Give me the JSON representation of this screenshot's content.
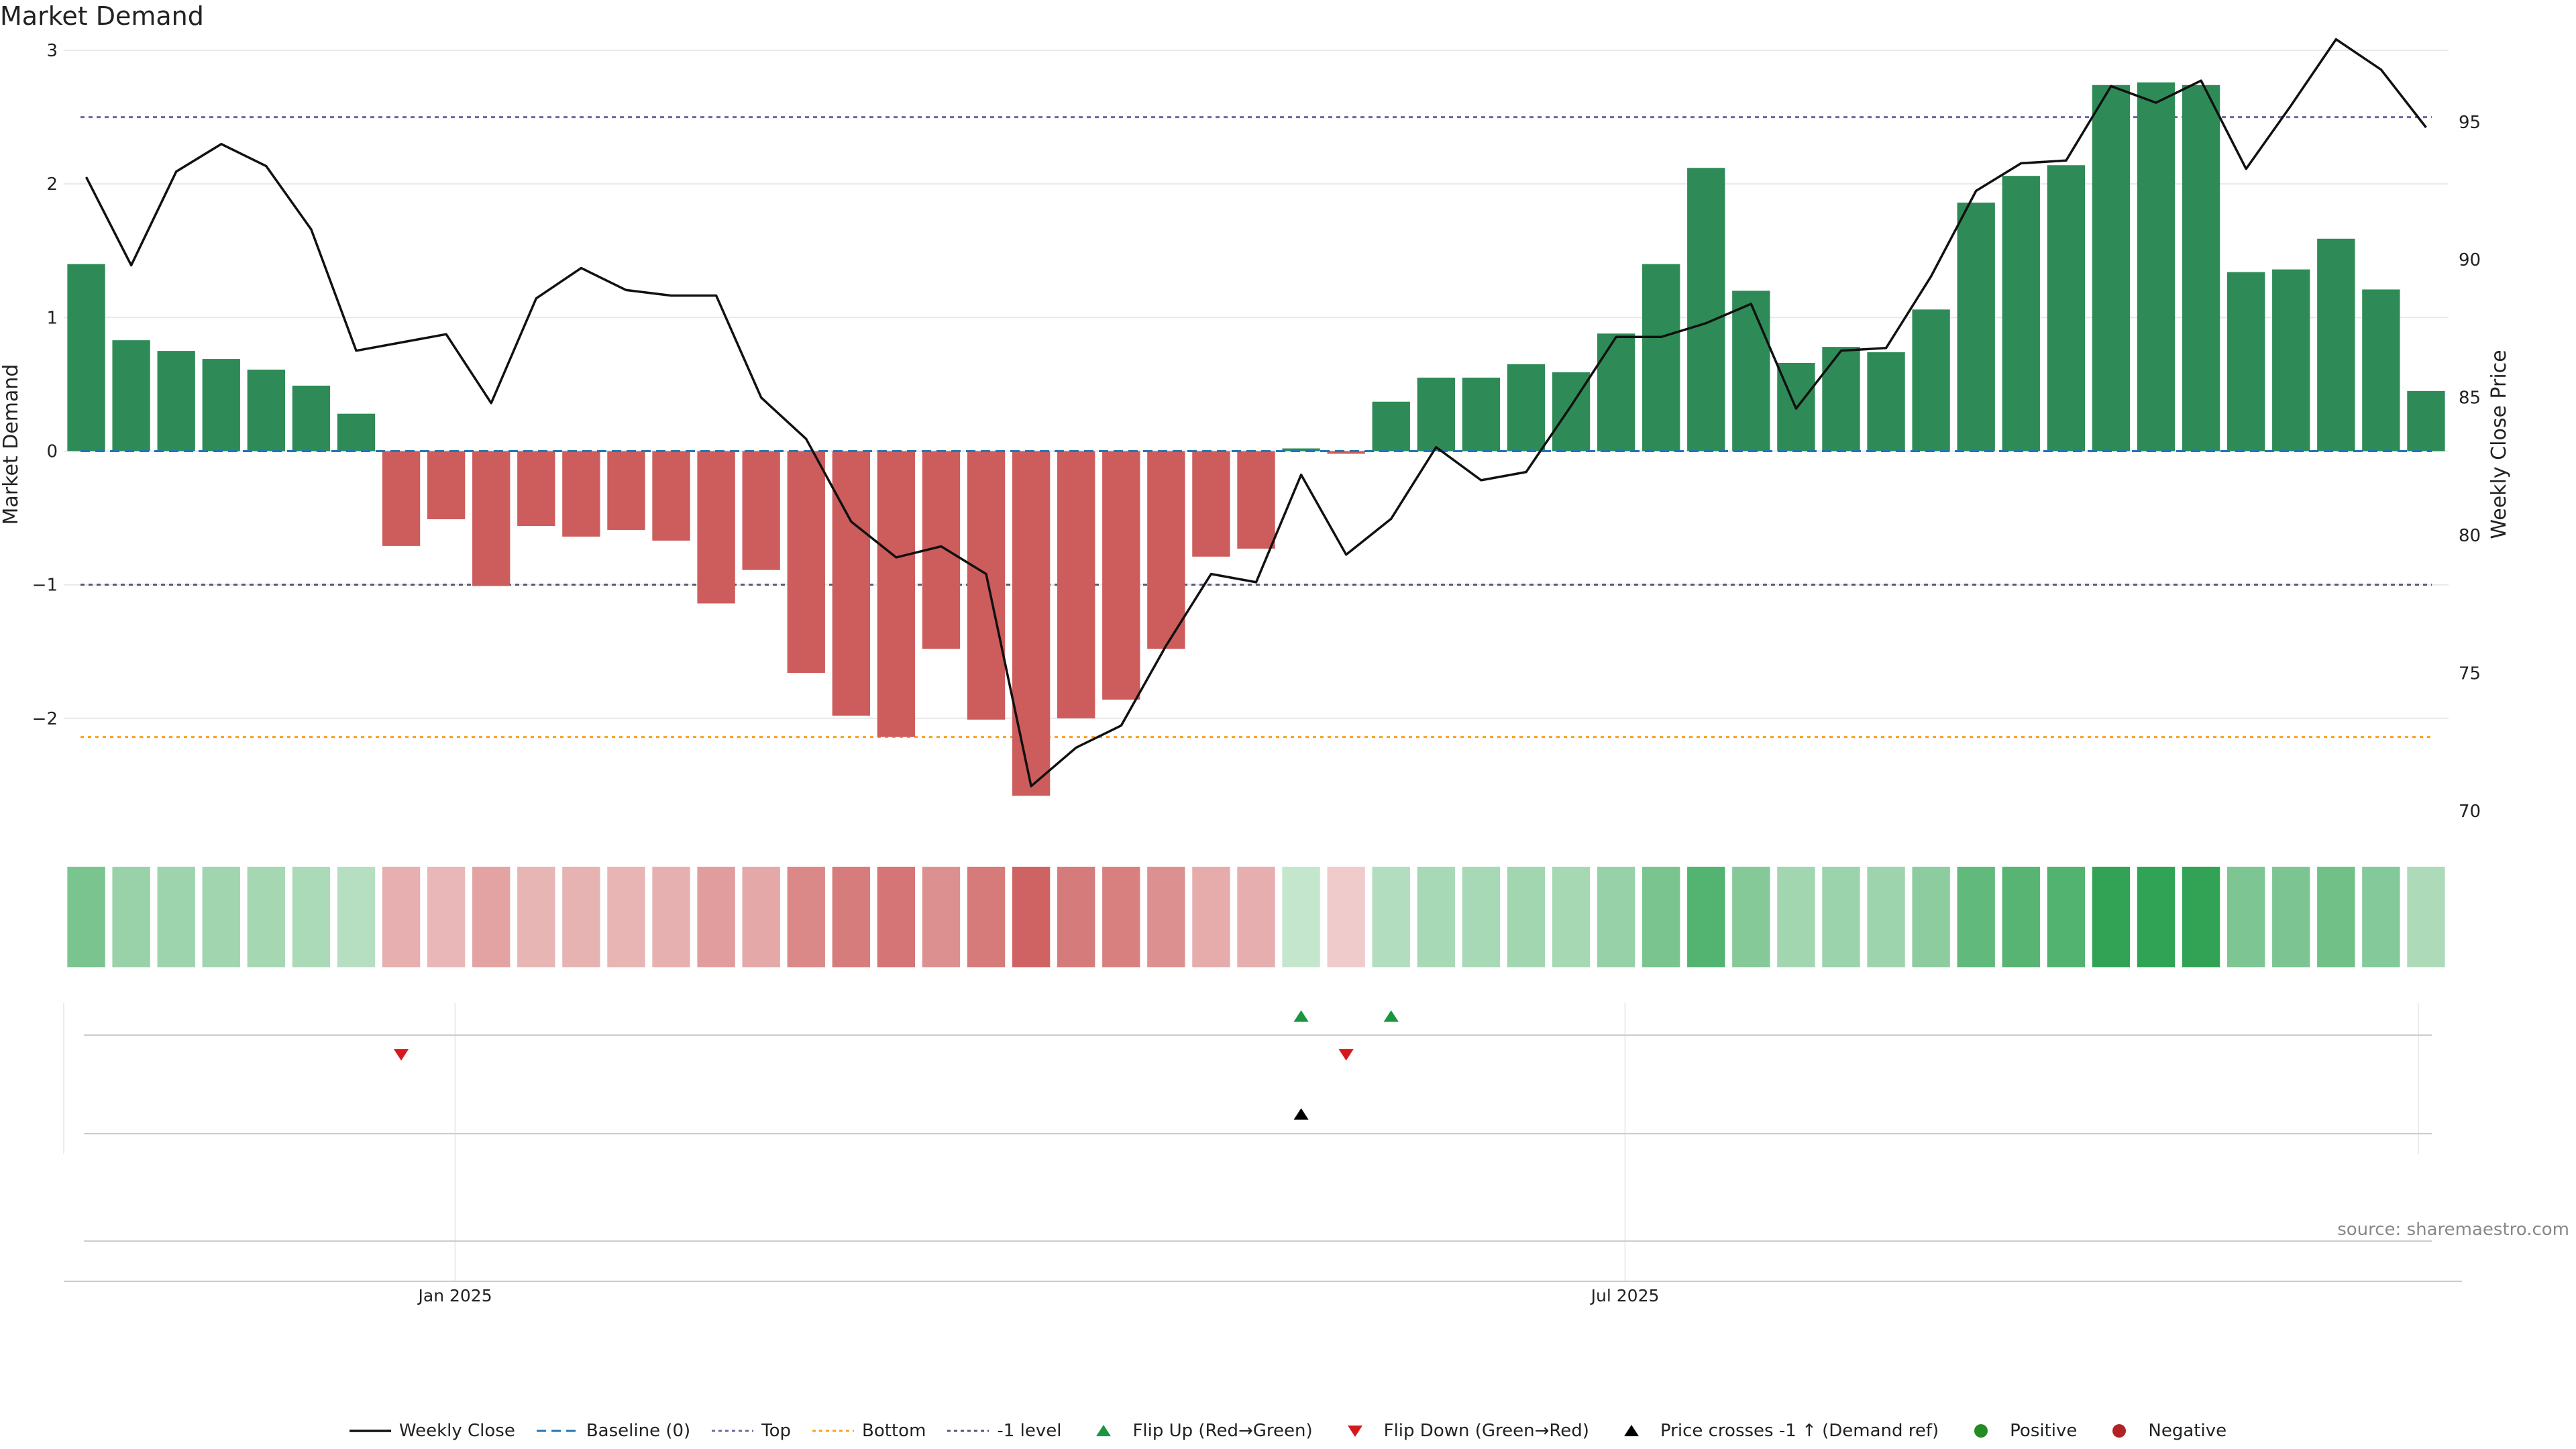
{
  "title": "Market Demand",
  "source": "source: sharemaestro.com",
  "colors": {
    "positive": "#2e8b57",
    "negative": "#cd5c5c",
    "price": "#111111",
    "baseline": "#1f77b4",
    "top": "#6a6aa8",
    "bottom": "#ff9f1c",
    "neg_level": "#555577",
    "flip_up": "#1a9641",
    "flip_down": "#d7191c"
  },
  "chart_data": {
    "type": "bar",
    "ylabel": "Market Demand",
    "y2label": "Weekly Close Price",
    "ylim": [
      -2.9,
      3.0
    ],
    "y2lim": [
      69.0,
      97.6
    ],
    "yticks": [
      {
        "value": 3,
        "label": "3"
      },
      {
        "value": 2,
        "label": "2"
      },
      {
        "value": 1,
        "label": "1"
      },
      {
        "value": 0,
        "label": "0"
      },
      {
        "value": -1,
        "label": "−1"
      },
      {
        "value": -2,
        "label": "−2"
      }
    ],
    "y2ticks": [
      {
        "value": 95,
        "label": "95"
      },
      {
        "value": 90,
        "label": "90"
      },
      {
        "value": 85,
        "label": "85"
      },
      {
        "value": 80,
        "label": "80"
      },
      {
        "value": 75,
        "label": "75"
      },
      {
        "value": 70,
        "label": "70"
      }
    ],
    "xticks": [
      {
        "index": 8.7,
        "label": "Jan 2025"
      },
      {
        "index": 34.7,
        "label": "Jul 2025"
      }
    ],
    "reference_lines": {
      "baseline": 0,
      "top": 2.5,
      "bottom": -2.14,
      "neg_level": -1
    },
    "demand": [
      1.4,
      0.83,
      0.75,
      0.69,
      0.61,
      0.49,
      0.28,
      -0.71,
      -0.51,
      -1.01,
      -0.56,
      -0.64,
      -0.59,
      -0.67,
      -1.14,
      -0.89,
      -1.66,
      -1.98,
      -2.14,
      -1.48,
      -2.01,
      -2.58,
      -2.0,
      -1.86,
      -1.48,
      -0.79,
      -0.73,
      0.02,
      -0.02,
      0.37,
      0.55,
      0.55,
      0.65,
      0.59,
      0.88,
      1.4,
      2.12,
      1.2,
      0.66,
      0.78,
      0.74,
      1.06,
      1.86,
      2.06,
      2.14,
      2.74,
      2.76,
      2.74,
      1.34,
      1.36,
      1.59,
      1.21,
      0.45
    ],
    "price": [
      93.0,
      89.8,
      93.2,
      94.2,
      93.4,
      91.1,
      86.7,
      87.0,
      87.3,
      84.8,
      88.6,
      89.7,
      88.9,
      88.7,
      88.7,
      85.0,
      83.5,
      80.5,
      79.2,
      79.6,
      78.6,
      70.9,
      72.3,
      73.1,
      76.0,
      78.6,
      78.3,
      82.2,
      79.3,
      80.6,
      83.2,
      82.0,
      82.3,
      84.7,
      87.2,
      87.2,
      87.7,
      88.4,
      84.6,
      86.7,
      86.8,
      89.4,
      92.5,
      93.5,
      93.6,
      96.3,
      95.7,
      96.5,
      93.3,
      95.6,
      98.0,
      96.9,
      94.8
    ],
    "flip_up": [
      27,
      29
    ],
    "flip_down": [
      7,
      28
    ],
    "price_cross": [
      27
    ],
    "legend": [
      {
        "key": "price",
        "label": "Weekly Close"
      },
      {
        "key": "baseline",
        "label": "Baseline (0)"
      },
      {
        "key": "top",
        "label": "Top"
      },
      {
        "key": "bottom",
        "label": "Bottom"
      },
      {
        "key": "neg_level",
        "label": "-1 level"
      },
      {
        "key": "flip_up",
        "label": "Flip Up (Red→Green)"
      },
      {
        "key": "flip_down",
        "label": "Flip Down (Green→Red)"
      },
      {
        "key": "price_cross",
        "label": "Price crosses -1 ↑ (Demand ref)"
      },
      {
        "key": "positive",
        "label": "Positive"
      },
      {
        "key": "negative",
        "label": "Negative"
      }
    ]
  }
}
